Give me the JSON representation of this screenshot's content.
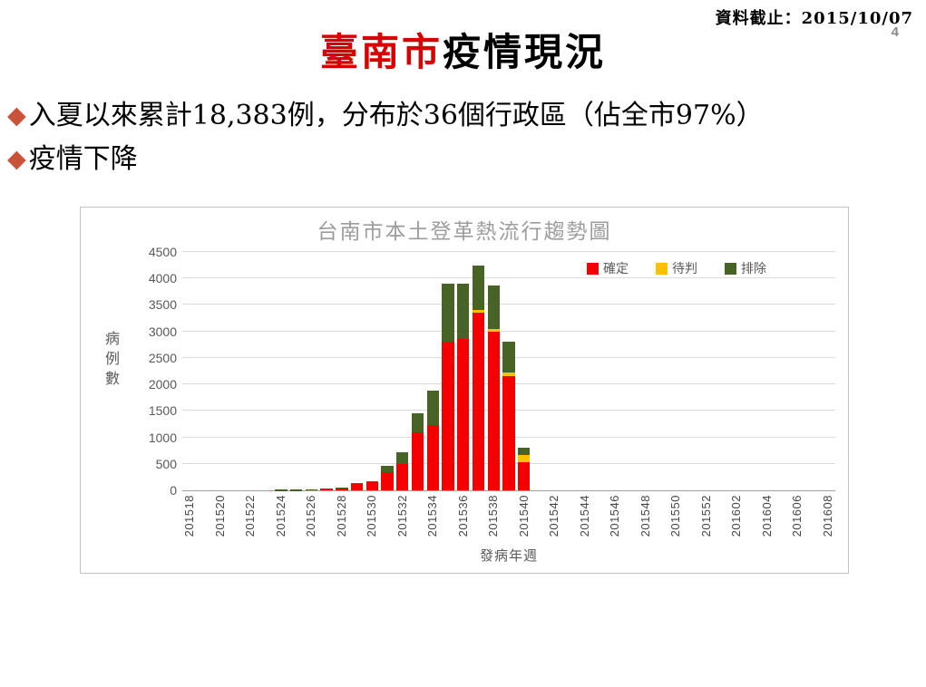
{
  "header": {
    "cutoff_label": "資料截止：2015/10/07",
    "page_number": "4"
  },
  "title": {
    "highlight": "臺南市",
    "rest": "疫情現況"
  },
  "bullets": [
    {
      "text": "入夏以來累計18,383例，分布於36個行政區（佔全市97%）"
    },
    {
      "text": "疫情下降"
    }
  ],
  "colors": {
    "title_red": "#d90000",
    "bullet_diamond": "#c8523a",
    "confirmed_red": "#f40000",
    "pending_yellow": "#ffc000",
    "excluded_green": "#486326",
    "gridline_gray": "#d9d9d9",
    "chart_title_gray": "#9d9d9d"
  },
  "chart_data": {
    "type": "bar",
    "stacked": true,
    "title": "台南市本土登革熱流行趨勢圖",
    "xlabel": "發病年週",
    "ylabel": "病例數",
    "ylim": [
      0,
      4500
    ],
    "ytick_step": 500,
    "grid": true,
    "legend_position": "top-right",
    "tick_every": 2,
    "categories": [
      "201518",
      "201519",
      "201520",
      "201521",
      "201522",
      "201523",
      "201524",
      "201525",
      "201526",
      "201527",
      "201528",
      "201529",
      "201530",
      "201531",
      "201532",
      "201533",
      "201534",
      "201535",
      "201536",
      "201537",
      "201538",
      "201539",
      "201540",
      "201541",
      "201542",
      "201543",
      "201544",
      "201545",
      "201546",
      "201547",
      "201548",
      "201549",
      "201550",
      "201551",
      "201552",
      "201601",
      "201602",
      "201603",
      "201604",
      "201605",
      "201606",
      "201607",
      "201608"
    ],
    "series": [
      {
        "name": "確定",
        "color": "#f40000",
        "values": [
          0,
          0,
          0,
          0,
          0,
          0,
          8,
          8,
          10,
          30,
          40,
          120,
          150,
          345,
          490,
          1090,
          1230,
          2800,
          2850,
          3350,
          3000,
          2150,
          525,
          0,
          0,
          0,
          0,
          0,
          0,
          0,
          0,
          0,
          0,
          0,
          0,
          0,
          0,
          0,
          0,
          0,
          0,
          0,
          0
        ]
      },
      {
        "name": "待判",
        "color": "#ffc000",
        "values": [
          0,
          0,
          0,
          0,
          0,
          0,
          0,
          0,
          0,
          0,
          0,
          0,
          0,
          0,
          0,
          0,
          0,
          0,
          0,
          50,
          50,
          75,
          150,
          0,
          0,
          0,
          0,
          0,
          0,
          0,
          0,
          0,
          0,
          0,
          0,
          0,
          0,
          0,
          0,
          0,
          0,
          0,
          0
        ]
      },
      {
        "name": "排除",
        "color": "#486326",
        "values": [
          0,
          0,
          0,
          0,
          0,
          0,
          5,
          5,
          5,
          5,
          10,
          10,
          25,
          110,
          230,
          360,
          650,
          1100,
          1050,
          850,
          825,
          575,
          125,
          0,
          0,
          0,
          0,
          0,
          0,
          0,
          0,
          0,
          0,
          0,
          0,
          0,
          0,
          0,
          0,
          0,
          0,
          0,
          0
        ]
      }
    ]
  }
}
